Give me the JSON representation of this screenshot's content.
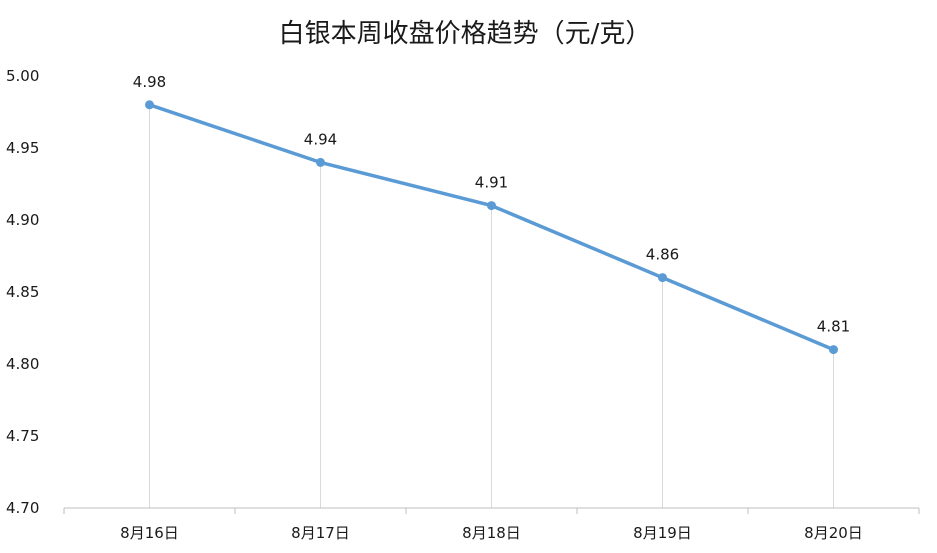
{
  "chart_data": {
    "type": "line",
    "title": "白银本周收盘价格趋势（元/克）",
    "categories": [
      "8月16日",
      "8月17日",
      "8月18日",
      "8月19日",
      "8月20日"
    ],
    "values": [
      4.98,
      4.94,
      4.91,
      4.86,
      4.81
    ],
    "data_labels": [
      "4.98",
      "4.94",
      "4.91",
      "4.86",
      "4.81"
    ],
    "y_ticks": [
      "4.70",
      "4.75",
      "4.80",
      "4.85",
      "4.90",
      "4.95",
      "5.00"
    ],
    "ylim": [
      4.7,
      5.0
    ],
    "xlabel": "",
    "ylabel": "",
    "grid": "vertical drop lines",
    "legend": "none",
    "colors": {
      "line": "#5b9bd5",
      "grid": "#d9d9d9",
      "axis": "#bfbfbf"
    }
  }
}
